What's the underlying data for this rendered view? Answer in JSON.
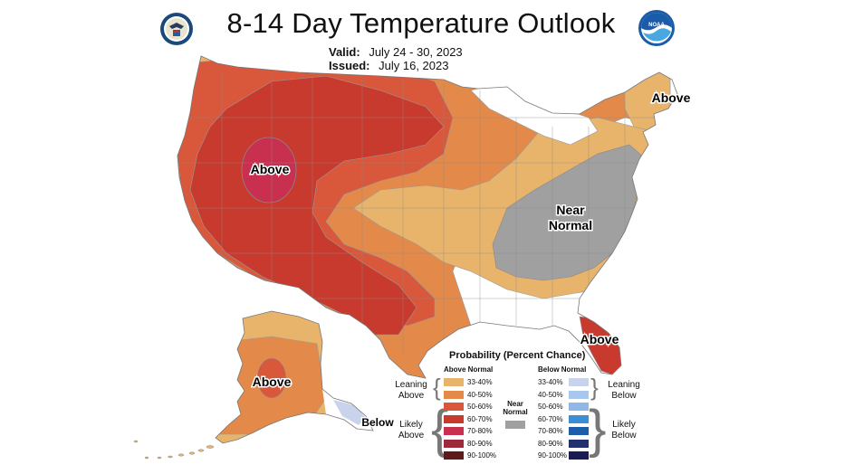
{
  "title": "8-14 Day Temperature Outlook",
  "valid": {
    "label": "Valid:",
    "value": "July 24 - 30, 2023"
  },
  "issued": {
    "label": "Issued:",
    "value": "July 16, 2023"
  },
  "logos": {
    "left": "commerce-seal-icon",
    "right": "noaa-logo-icon",
    "noaa_text": "NOAA"
  },
  "colors": {
    "above_33_40": "#e8b46c",
    "above_40_50": "#e38a4a",
    "above_50_60": "#d9573a",
    "above_60_70": "#c93a2e",
    "above_70_80": "#c93050",
    "above_80_90": "#9c2a3a",
    "above_90_100": "#5c1a1a",
    "near_normal": "#a0a0a0",
    "below_33_40": "#c9d4ec",
    "below_40_50": "#a9c6ec",
    "below_50_60": "#8fb8e6",
    "below_60_70": "#3c8fd4",
    "below_70_80": "#1c5ea8",
    "below_80_90": "#22306e",
    "below_90_100": "#1c1a52"
  },
  "map_labels": {
    "west_above": "Above",
    "northeast_above": "Above",
    "near_normal_line1": "Near",
    "near_normal_line2": "Normal",
    "florida_above": "Above",
    "alaska_above": "Above",
    "alaska_below": "Below"
  },
  "legend": {
    "title": "Probability (Percent Chance)",
    "above_heading": "Above Normal",
    "below_heading": "Below Normal",
    "near_heading_line1": "Near",
    "near_heading_line2": "Normal",
    "leaning_above_line1": "Leaning",
    "leaning_above_line2": "Above",
    "likely_above_line1": "Likely",
    "likely_above_line2": "Above",
    "leaning_below_line1": "Leaning",
    "leaning_below_line2": "Below",
    "likely_below_line1": "Likely",
    "likely_below_line2": "Below",
    "above_ranges": [
      "33-40%",
      "40-50%",
      "50-60%",
      "60-70%",
      "70-80%",
      "80-90%",
      "90-100%"
    ],
    "below_ranges": [
      "33-40%",
      "40-50%",
      "50-60%",
      "60-70%",
      "70-80%",
      "80-90%",
      "90-100%"
    ]
  }
}
